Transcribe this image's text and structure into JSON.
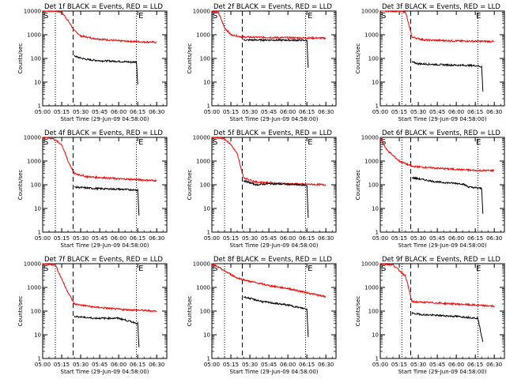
{
  "chart_data": [
    {
      "type": "line",
      "title": "Det 1f BLACK = Events, RED = LLD",
      "xlabel": "Start Time (29-Jun-09 04:58:00)",
      "ylabel": "Counts/sec",
      "y_scale": "log",
      "ylim": [
        1,
        10000
      ],
      "xlim": [
        "05:00",
        "06:38"
      ],
      "x_ticks": [
        "05:00",
        "05:15",
        "05:30",
        "05:45",
        "06:00",
        "06:15",
        "06:30"
      ],
      "y_ticks": [
        "1",
        "10",
        "100",
        "1000",
        "10000"
      ],
      "markers": [
        "S",
        "E"
      ],
      "marker_time": {
        "S": "05:00",
        "E": "06:15"
      },
      "vlines": {
        "dotted": [
          "05:10",
          "06:14"
        ],
        "dashed": [
          "05:24"
        ]
      },
      "series": [
        {
          "name": "Events",
          "color": "#000000",
          "x": [
            "05:25",
            "05:28",
            "05:35",
            "05:45",
            "06:00",
            "06:10",
            "06:14",
            "06:15"
          ],
          "y": [
            130,
            110,
            90,
            80,
            75,
            70,
            72,
            8
          ]
        },
        {
          "name": "LLD",
          "color": "#ff0000",
          "x": [
            "05:00",
            "05:10",
            "05:15",
            "05:20",
            "05:25",
            "05:30",
            "05:40",
            "06:00",
            "06:20",
            "06:30"
          ],
          "y": [
            10000,
            10000,
            9000,
            4000,
            1500,
            900,
            700,
            550,
            500,
            480
          ]
        }
      ]
    },
    {
      "type": "line",
      "title": "Det 2f BLACK = Events, RED = LLD",
      "xlabel": "Start Time (29-Jun-09 04:58:00)",
      "ylabel": "Counts/sec",
      "y_scale": "log",
      "ylim": [
        1,
        10000
      ],
      "xlim": [
        "05:00",
        "06:38"
      ],
      "x_ticks": [
        "05:00",
        "05:15",
        "05:30",
        "05:45",
        "06:00",
        "06:15",
        "06:30"
      ],
      "y_ticks": [
        "1",
        "10",
        "100",
        "1000",
        "10000"
      ],
      "markers": [
        "S",
        "E"
      ],
      "marker_time": {
        "S": "05:00",
        "E": "06:15"
      },
      "vlines": {
        "dotted": [
          "05:10",
          "06:14"
        ],
        "dashed": [
          "05:24"
        ]
      },
      "series": [
        {
          "name": "Events",
          "color": "#000000",
          "x": [
            "05:25",
            "05:40",
            "06:00",
            "06:15",
            "06:16"
          ],
          "y": [
            600,
            600,
            590,
            580,
            40
          ]
        },
        {
          "name": "LLD",
          "color": "#ff0000",
          "x": [
            "05:00",
            "05:05",
            "05:10",
            "05:15",
            "05:25",
            "06:00",
            "06:30"
          ],
          "y": [
            10000,
            9000,
            2000,
            1000,
            800,
            750,
            720
          ]
        }
      ]
    },
    {
      "type": "line",
      "title": "Det 3f BLACK = Events, RED = LLD",
      "xlabel": "Start Time (29-Jun-09 04:58:00)",
      "ylabel": "Counts/sec",
      "y_scale": "log",
      "ylim": [
        1,
        10000
      ],
      "xlim": [
        "05:00",
        "06:38"
      ],
      "x_ticks": [
        "05:00",
        "05:15",
        "05:30",
        "05:45",
        "06:00",
        "06:15",
        "06:30"
      ],
      "y_ticks": [
        "1",
        "10",
        "100",
        "1000",
        "10000"
      ],
      "markers": [
        "S",
        "E"
      ],
      "marker_time": {
        "S": "05:00",
        "E": "06:15"
      },
      "vlines": {
        "dotted": [
          "05:17",
          "06:17"
        ],
        "dashed": [
          "05:24"
        ]
      },
      "series": [
        {
          "name": "Events",
          "color": "#000000",
          "x": [
            "05:25",
            "05:30",
            "05:45",
            "06:00",
            "06:15",
            "06:20",
            "06:21"
          ],
          "y": [
            70,
            60,
            55,
            52,
            50,
            45,
            4
          ]
        },
        {
          "name": "LLD",
          "color": "#ff0000",
          "x": [
            "05:00",
            "05:15",
            "05:20",
            "05:25",
            "05:35",
            "06:00",
            "06:30"
          ],
          "y": [
            10000,
            10000,
            9000,
            800,
            600,
            550,
            520
          ]
        }
      ]
    },
    {
      "type": "line",
      "title": "Det 4f BLACK = Events, RED = LLD",
      "xlabel": "Start Time (29-Jun-09 04:58:00)",
      "ylabel": "Counts/sec",
      "y_scale": "log",
      "ylim": [
        1,
        10000
      ],
      "xlim": [
        "05:00",
        "06:38"
      ],
      "x_ticks": [
        "05:00",
        "05:15",
        "05:30",
        "05:45",
        "06:00",
        "06:15",
        "06:30"
      ],
      "y_ticks": [
        "1",
        "10",
        "100",
        "1000",
        "10000"
      ],
      "markers": [
        "S",
        "E"
      ],
      "marker_time": {
        "S": "05:00",
        "E": "06:15"
      },
      "vlines": {
        "dotted": [
          "05:10",
          "06:14"
        ],
        "dashed": [
          "05:24"
        ]
      },
      "series": [
        {
          "name": "Events",
          "color": "#000000",
          "x": [
            "05:25",
            "05:40",
            "06:00",
            "06:15",
            "06:16"
          ],
          "y": [
            80,
            70,
            65,
            60,
            5
          ]
        },
        {
          "name": "LLD",
          "color": "#ff0000",
          "x": [
            "05:00",
            "05:08",
            "05:15",
            "05:20",
            "05:25",
            "05:35",
            "06:00",
            "06:30"
          ],
          "y": [
            10000,
            9000,
            5000,
            1000,
            300,
            220,
            180,
            150
          ]
        }
      ]
    },
    {
      "type": "line",
      "title": "Det 5f BLACK = Events, RED = LLD",
      "xlabel": "Start Time (29-Jun-09 04:58:00)",
      "ylabel": "Counts/sec",
      "y_scale": "log",
      "ylim": [
        1,
        10000
      ],
      "xlim": [
        "05:00",
        "06:38"
      ],
      "x_ticks": [
        "05:00",
        "05:15",
        "05:30",
        "05:45",
        "06:00",
        "06:15",
        "06:30"
      ],
      "y_ticks": [
        "1",
        "10",
        "100",
        "1000",
        "10000"
      ],
      "markers": [
        "S",
        "E"
      ],
      "marker_time": {
        "S": "05:00",
        "E": "06:15"
      },
      "vlines": {
        "dotted": [
          "05:10",
          "06:14"
        ],
        "dashed": [
          "05:24"
        ]
      },
      "series": [
        {
          "name": "Events",
          "color": "#000000",
          "x": [
            "05:25",
            "05:35",
            "05:45",
            "06:00",
            "06:15",
            "06:16"
          ],
          "y": [
            150,
            100,
            110,
            105,
            95,
            4
          ]
        },
        {
          "name": "LLD",
          "color": "#ff0000",
          "x": [
            "05:00",
            "05:10",
            "05:15",
            "05:20",
            "05:25",
            "05:35",
            "06:00",
            "06:30"
          ],
          "y": [
            10000,
            9000,
            5000,
            2000,
            200,
            130,
            110,
            100
          ]
        }
      ]
    },
    {
      "type": "line",
      "title": "Det 6f BLACK = Events, RED = LLD",
      "xlabel": "Start Time (29-Jun-09 04:58:00)",
      "ylabel": "Counts/sec",
      "y_scale": "log",
      "ylim": [
        1,
        10000
      ],
      "xlim": [
        "05:00",
        "06:38"
      ],
      "x_ticks": [
        "05:00",
        "05:15",
        "05:30",
        "05:45",
        "06:00",
        "06:15",
        "06:30"
      ],
      "y_ticks": [
        "1",
        "10",
        "100",
        "1000",
        "10000"
      ],
      "markers": [
        "S",
        "E"
      ],
      "marker_time": {
        "S": "05:00",
        "E": "06:15"
      },
      "vlines": {
        "dotted": [
          "05:17",
          "06:17"
        ],
        "dashed": [
          "05:24"
        ]
      },
      "series": [
        {
          "name": "Events",
          "color": "#000000",
          "x": [
            "05:25",
            "05:45",
            "06:05",
            "06:10",
            "06:20",
            "06:21"
          ],
          "y": [
            200,
            130,
            110,
            80,
            70,
            6
          ]
        },
        {
          "name": "LLD",
          "color": "#ff0000",
          "x": [
            "05:00",
            "05:05",
            "05:15",
            "05:25",
            "05:45",
            "06:15",
            "06:30"
          ],
          "y": [
            10000,
            3000,
            1000,
            600,
            500,
            400,
            400
          ]
        }
      ]
    },
    {
      "type": "line",
      "title": "Det 7f BLACK = Events, RED = LLD",
      "xlabel": "Start Time (29-Jun-09 04:58:00)",
      "ylabel": "Counts/sec",
      "y_scale": "log",
      "ylim": [
        1,
        10000
      ],
      "xlim": [
        "05:00",
        "06:38"
      ],
      "x_ticks": [
        "05:00",
        "05:15",
        "05:30",
        "05:45",
        "06:00",
        "06:15",
        "06:30"
      ],
      "y_ticks": [
        "1",
        "10",
        "100",
        "1000",
        "10000"
      ],
      "markers": [
        "S",
        "E"
      ],
      "marker_time": {
        "S": "05:00",
        "E": "06:15"
      },
      "vlines": {
        "dotted": [
          "05:10",
          "06:14"
        ],
        "dashed": [
          "05:24"
        ]
      },
      "series": [
        {
          "name": "Events",
          "color": "#000000",
          "x": [
            "05:25",
            "05:40",
            "06:00",
            "06:15",
            "06:16"
          ],
          "y": [
            60,
            50,
            50,
            30,
            3
          ]
        },
        {
          "name": "LLD",
          "color": "#ff0000",
          "x": [
            "05:00",
            "05:10",
            "05:18",
            "05:25",
            "05:40",
            "06:00",
            "06:30"
          ],
          "y": [
            10000,
            9000,
            1000,
            200,
            150,
            120,
            100
          ]
        }
      ]
    },
    {
      "type": "line",
      "title": "Det 8f BLACK = Events, RED = LLD",
      "xlabel": "Start Time (29-Jun-09 04:58:00)",
      "ylabel": "Counts/sec",
      "y_scale": "log",
      "ylim": [
        1,
        10000
      ],
      "xlim": [
        "05:00",
        "06:38"
      ],
      "x_ticks": [
        "05:00",
        "05:15",
        "05:30",
        "05:45",
        "06:00",
        "06:15",
        "06:30"
      ],
      "y_ticks": [
        "1",
        "10",
        "100",
        "1000",
        "10000"
      ],
      "markers": [
        "S",
        "E"
      ],
      "marker_time": {
        "S": "05:00",
        "E": "06:15"
      },
      "vlines": {
        "dotted": [
          "05:10",
          "06:14"
        ],
        "dashed": [
          "05:24"
        ]
      },
      "series": [
        {
          "name": "Events",
          "color": "#000000",
          "x": [
            "05:25",
            "05:40",
            "06:00",
            "06:15",
            "06:16"
          ],
          "y": [
            400,
            250,
            180,
            120,
            8
          ]
        },
        {
          "name": "LLD",
          "color": "#ff0000",
          "x": [
            "05:00",
            "05:10",
            "05:20",
            "05:30",
            "05:45",
            "06:00",
            "06:15",
            "06:30"
          ],
          "y": [
            10000,
            5000,
            2500,
            1800,
            1200,
            900,
            600,
            400
          ]
        }
      ]
    },
    {
      "type": "line",
      "title": "Det 9f BLACK = Events, RED = LLD",
      "xlabel": "Start Time (29-Jun-09 04:58:00)",
      "ylabel": "Counts/sec",
      "y_scale": "log",
      "ylim": [
        1,
        10000
      ],
      "xlim": [
        "05:00",
        "06:38"
      ],
      "x_ticks": [
        "05:00",
        "05:15",
        "05:30",
        "05:45",
        "06:00",
        "06:15",
        "06:30"
      ],
      "y_ticks": [
        "1",
        "10",
        "100",
        "1000",
        "10000"
      ],
      "markers": [
        "S",
        "E"
      ],
      "marker_time": {
        "S": "05:00",
        "E": "06:15"
      },
      "vlines": {
        "dotted": [
          "05:17",
          "06:17"
        ],
        "dashed": [
          "05:24"
        ]
      },
      "series": [
        {
          "name": "Events",
          "color": "#000000",
          "x": [
            "05:25",
            "05:35",
            "06:00",
            "06:17",
            "06:21"
          ],
          "y": [
            80,
            70,
            60,
            50,
            5
          ]
        },
        {
          "name": "LLD",
          "color": "#ff0000",
          "x": [
            "05:00",
            "05:10",
            "05:20",
            "05:25",
            "05:45",
            "06:15",
            "06:30"
          ],
          "y": [
            10000,
            9000,
            3000,
            250,
            220,
            180,
            160
          ]
        }
      ]
    }
  ]
}
